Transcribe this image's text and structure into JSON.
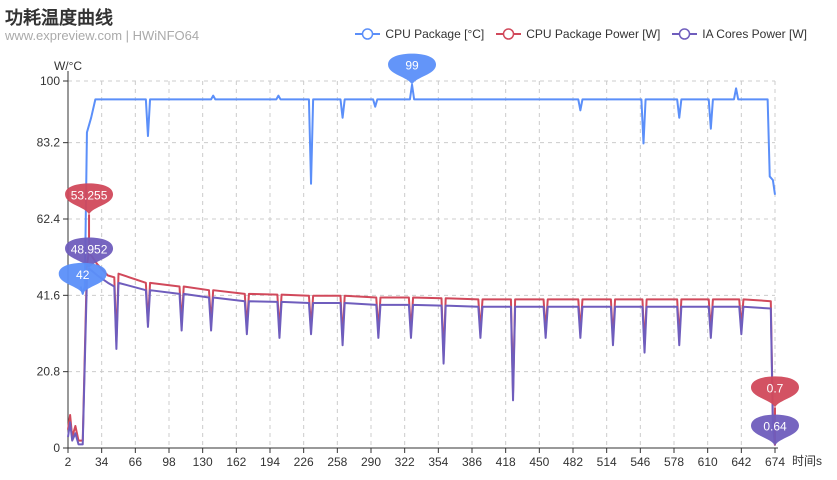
{
  "title": "功耗温度曲线",
  "subtitle": "www.expreview.com  | HWiNFO64",
  "chart_data": {
    "type": "line",
    "ylabel": "W/°C",
    "xlabel": "时间s",
    "ylim": [
      0,
      100
    ],
    "xlim": [
      2,
      674
    ],
    "yticks": [
      "0",
      "20.8",
      "41.6",
      "62.4",
      "83.2",
      "100"
    ],
    "xticks": [
      "2",
      "34",
      "66",
      "98",
      "130",
      "162",
      "194",
      "226",
      "258",
      "290",
      "322",
      "354",
      "386",
      "418",
      "450",
      "482",
      "514",
      "546",
      "578",
      "610",
      "642",
      "674"
    ],
    "grid": true,
    "legend_position": "top-right",
    "series": [
      {
        "name": "CPU Package [°C]",
        "color": "#5b8ff9",
        "max_label": "99",
        "min_label": "42",
        "max_point": [
          329,
          99
        ],
        "min_point": [
          16,
          42
        ],
        "points": [
          [
            14,
            44
          ],
          [
            16,
            42
          ],
          [
            18,
            44
          ],
          [
            20,
            86
          ],
          [
            24,
            90
          ],
          [
            28,
            95
          ],
          [
            76,
            95
          ],
          [
            78,
            85
          ],
          [
            80,
            95
          ],
          [
            138,
            95
          ],
          [
            140,
            96
          ],
          [
            142,
            95
          ],
          [
            200,
            95
          ],
          [
            202,
            96
          ],
          [
            204,
            95
          ],
          [
            231,
            95
          ],
          [
            233,
            72
          ],
          [
            235,
            95
          ],
          [
            261,
            95
          ],
          [
            263,
            90
          ],
          [
            265,
            95
          ],
          [
            292,
            95
          ],
          [
            294,
            93
          ],
          [
            296,
            95
          ],
          [
            327,
            95
          ],
          [
            329,
            99
          ],
          [
            331,
            95
          ],
          [
            487,
            95
          ],
          [
            489,
            92
          ],
          [
            491,
            95
          ],
          [
            547,
            95
          ],
          [
            549,
            83
          ],
          [
            551,
            95
          ],
          [
            581,
            95
          ],
          [
            583,
            90
          ],
          [
            585,
            95
          ],
          [
            611,
            95
          ],
          [
            613,
            87
          ],
          [
            615,
            95
          ],
          [
            635,
            95
          ],
          [
            637,
            98
          ],
          [
            639,
            95
          ],
          [
            667,
            95
          ],
          [
            669,
            74
          ],
          [
            672,
            73
          ],
          [
            674,
            69
          ]
        ]
      },
      {
        "name": "CPU Package Power [W]",
        "color": "#d1495b",
        "max_label": "53.255",
        "min_label": "0.7",
        "max_point": [
          22,
          53.3
        ],
        "min_point": [
          674,
          0.7
        ],
        "points": [
          [
            2,
            5
          ],
          [
            4,
            9
          ],
          [
            6,
            3
          ],
          [
            9,
            6
          ],
          [
            12,
            2
          ],
          [
            16,
            2
          ],
          [
            20,
            50
          ],
          [
            22,
            53.3
          ],
          [
            30,
            50
          ],
          [
            40,
            47
          ],
          [
            46,
            46.5
          ],
          [
            48,
            29
          ],
          [
            50,
            47.5
          ],
          [
            76,
            45
          ],
          [
            78,
            34
          ],
          [
            80,
            45
          ],
          [
            108,
            44
          ],
          [
            110,
            34
          ],
          [
            112,
            44
          ],
          [
            136,
            43
          ],
          [
            138,
            34
          ],
          [
            140,
            43
          ],
          [
            170,
            42
          ],
          [
            172,
            33
          ],
          [
            174,
            42
          ],
          [
            201,
            41.8
          ],
          [
            203,
            32
          ],
          [
            205,
            41.8
          ],
          [
            231,
            41.5
          ],
          [
            233,
            33
          ],
          [
            235,
            41.5
          ],
          [
            261,
            41.5
          ],
          [
            263,
            30
          ],
          [
            265,
            41.5
          ],
          [
            295,
            41
          ],
          [
            297,
            32
          ],
          [
            299,
            41
          ],
          [
            326,
            41
          ],
          [
            328,
            32
          ],
          [
            330,
            41
          ],
          [
            357,
            40.8
          ],
          [
            359,
            25
          ],
          [
            361,
            40.8
          ],
          [
            392,
            40.5
          ],
          [
            394,
            32
          ],
          [
            396,
            40.5
          ],
          [
            423,
            40.5
          ],
          [
            425,
            15
          ],
          [
            427,
            40.5
          ],
          [
            454,
            40.5
          ],
          [
            456,
            32
          ],
          [
            458,
            40.5
          ],
          [
            487,
            40.5
          ],
          [
            489,
            32
          ],
          [
            491,
            40.5
          ],
          [
            518,
            40.5
          ],
          [
            520,
            30
          ],
          [
            522,
            40.5
          ],
          [
            548,
            40.5
          ],
          [
            550,
            28
          ],
          [
            552,
            40.5
          ],
          [
            581,
            40.5
          ],
          [
            583,
            30
          ],
          [
            585,
            40.5
          ],
          [
            611,
            40.5
          ],
          [
            613,
            32
          ],
          [
            615,
            40.5
          ],
          [
            640,
            40.5
          ],
          [
            642,
            33
          ],
          [
            644,
            40.5
          ],
          [
            670,
            40
          ],
          [
            672,
            8
          ],
          [
            674,
            0.7
          ]
        ]
      },
      {
        "name": "IA Cores Power [W]",
        "color": "#6f5dbd",
        "max_label": "48.952",
        "min_label": "0.64",
        "max_point": [
          22,
          48.9
        ],
        "min_point": [
          674,
          0.64
        ],
        "points": [
          [
            2,
            3
          ],
          [
            4,
            7
          ],
          [
            6,
            2
          ],
          [
            9,
            4
          ],
          [
            12,
            1
          ],
          [
            16,
            1
          ],
          [
            20,
            46
          ],
          [
            22,
            48.9
          ],
          [
            30,
            47
          ],
          [
            40,
            45
          ],
          [
            46,
            44
          ],
          [
            48,
            27
          ],
          [
            50,
            45
          ],
          [
            76,
            43
          ],
          [
            78,
            33
          ],
          [
            80,
            43
          ],
          [
            108,
            42
          ],
          [
            110,
            32
          ],
          [
            112,
            42
          ],
          [
            136,
            41
          ],
          [
            138,
            32
          ],
          [
            140,
            41
          ],
          [
            170,
            40
          ],
          [
            172,
            31
          ],
          [
            174,
            40
          ],
          [
            201,
            39.8
          ],
          [
            203,
            30
          ],
          [
            205,
            39.8
          ],
          [
            231,
            39.5
          ],
          [
            233,
            31
          ],
          [
            235,
            39.5
          ],
          [
            261,
            39.5
          ],
          [
            263,
            28
          ],
          [
            265,
            39.5
          ],
          [
            295,
            39
          ],
          [
            297,
            30
          ],
          [
            299,
            39
          ],
          [
            326,
            39
          ],
          [
            328,
            30
          ],
          [
            330,
            39
          ],
          [
            357,
            38.8
          ],
          [
            359,
            23
          ],
          [
            361,
            38.8
          ],
          [
            392,
            38.5
          ],
          [
            394,
            30
          ],
          [
            396,
            38.5
          ],
          [
            423,
            38.5
          ],
          [
            425,
            13
          ],
          [
            427,
            38.5
          ],
          [
            454,
            38.5
          ],
          [
            456,
            30
          ],
          [
            458,
            38.5
          ],
          [
            487,
            38.5
          ],
          [
            489,
            30
          ],
          [
            491,
            38.5
          ],
          [
            518,
            38.5
          ],
          [
            520,
            28
          ],
          [
            522,
            38.5
          ],
          [
            548,
            38.5
          ],
          [
            550,
            26
          ],
          [
            552,
            38.5
          ],
          [
            581,
            38.5
          ],
          [
            583,
            28
          ],
          [
            585,
            38.5
          ],
          [
            611,
            38.5
          ],
          [
            613,
            30
          ],
          [
            615,
            38.5
          ],
          [
            640,
            38.5
          ],
          [
            642,
            31
          ],
          [
            644,
            38.5
          ],
          [
            670,
            38
          ],
          [
            672,
            6
          ],
          [
            674,
            0.64
          ]
        ]
      }
    ]
  }
}
